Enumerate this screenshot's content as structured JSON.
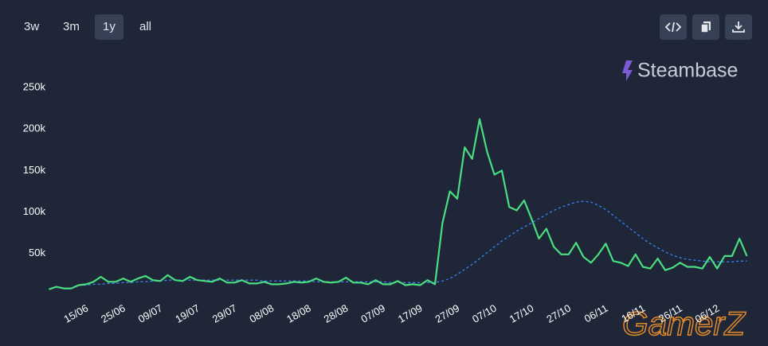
{
  "toolbar": {
    "ranges": [
      "3w",
      "3m",
      "1y",
      "all"
    ],
    "active": "1y"
  },
  "logo": "Steambase",
  "watermark": "GamerZ",
  "chart_data": {
    "type": "line",
    "categories": [
      null,
      null,
      null,
      null,
      null,
      "15/06",
      null,
      null,
      null,
      null,
      "25/06",
      null,
      null,
      null,
      null,
      "09/07",
      null,
      null,
      null,
      null,
      "19/07",
      null,
      null,
      null,
      null,
      "29/07",
      null,
      null,
      null,
      null,
      "08/08",
      null,
      null,
      null,
      null,
      "18/08",
      null,
      null,
      null,
      null,
      "28/08",
      null,
      null,
      null,
      null,
      "07/09",
      null,
      null,
      null,
      null,
      "17/09",
      null,
      null,
      null,
      null,
      "27/09",
      null,
      null,
      null,
      null,
      "07/10",
      null,
      null,
      null,
      null,
      "17/10",
      null,
      null,
      null,
      null,
      "27/10",
      null,
      null,
      null,
      null,
      "06/11",
      null,
      null,
      null,
      null,
      "16/11",
      null,
      null,
      null,
      null,
      "26/11",
      null,
      null,
      null,
      null,
      "06/12",
      null,
      null,
      null,
      null
    ],
    "series": [
      {
        "color": "#4ade80",
        "dashed": false,
        "values": [
          7000,
          10000,
          8000,
          8000,
          12000,
          13000,
          16000,
          22000,
          16000,
          16000,
          20000,
          16000,
          20000,
          23000,
          18000,
          17000,
          24000,
          18000,
          17000,
          22000,
          18000,
          17000,
          16000,
          20000,
          15000,
          15000,
          18000,
          14000,
          14000,
          16000,
          13000,
          13000,
          14000,
          16000,
          15000,
          16000,
          20000,
          16000,
          15000,
          16000,
          21000,
          15000,
          15000,
          13000,
          18000,
          13000,
          13000,
          17000,
          12000,
          13000,
          12000,
          18000,
          13000,
          87000,
          125000,
          116000,
          178000,
          164000,
          212000,
          173000,
          145000,
          150000,
          106000,
          102000,
          114000,
          92000,
          68000,
          80000,
          58000,
          49000,
          49000,
          63000,
          46000,
          39000,
          49000,
          62000,
          41000,
          39000,
          35000,
          49000,
          34000,
          32000,
          44000,
          30000,
          33000,
          39000,
          34000,
          34000,
          32000,
          46000,
          32000,
          47000,
          47000,
          68000,
          47000
        ]
      },
      {
        "color": "#3b82f6",
        "dashed": true,
        "values": [
          null,
          null,
          null,
          null,
          12000,
          12000,
          13000,
          13000,
          14000,
          14000,
          15000,
          15000,
          16000,
          16000,
          17000,
          17000,
          18000,
          18000,
          18000,
          18000,
          18000,
          18000,
          18000,
          18000,
          18000,
          18000,
          18000,
          18000,
          18000,
          17000,
          17000,
          17000,
          17000,
          17000,
          17000,
          17000,
          16000,
          16000,
          16000,
          16000,
          16000,
          16000,
          16000,
          16000,
          16000,
          16000,
          15000,
          15000,
          15000,
          15000,
          15000,
          15000,
          15000,
          17000,
          20000,
          25000,
          31000,
          37000,
          44000,
          51000,
          58000,
          65000,
          71000,
          77000,
          82000,
          87000,
          92000,
          97000,
          102000,
          106000,
          109000,
          112000,
          113000,
          112000,
          108000,
          103000,
          96000,
          89000,
          82000,
          75000,
          68000,
          62000,
          57000,
          52000,
          48000,
          45000,
          43000,
          42000,
          41000,
          40000,
          40000,
          40000,
          40000,
          41000,
          41000
        ]
      }
    ],
    "ylim": [
      0,
      250000
    ],
    "yticks": [
      {
        "value": 50000,
        "label": "50k"
      },
      {
        "value": 100000,
        "label": "100k"
      },
      {
        "value": 150000,
        "label": "150k"
      },
      {
        "value": 200000,
        "label": "200k"
      },
      {
        "value": 250000,
        "label": "250k"
      }
    ]
  }
}
